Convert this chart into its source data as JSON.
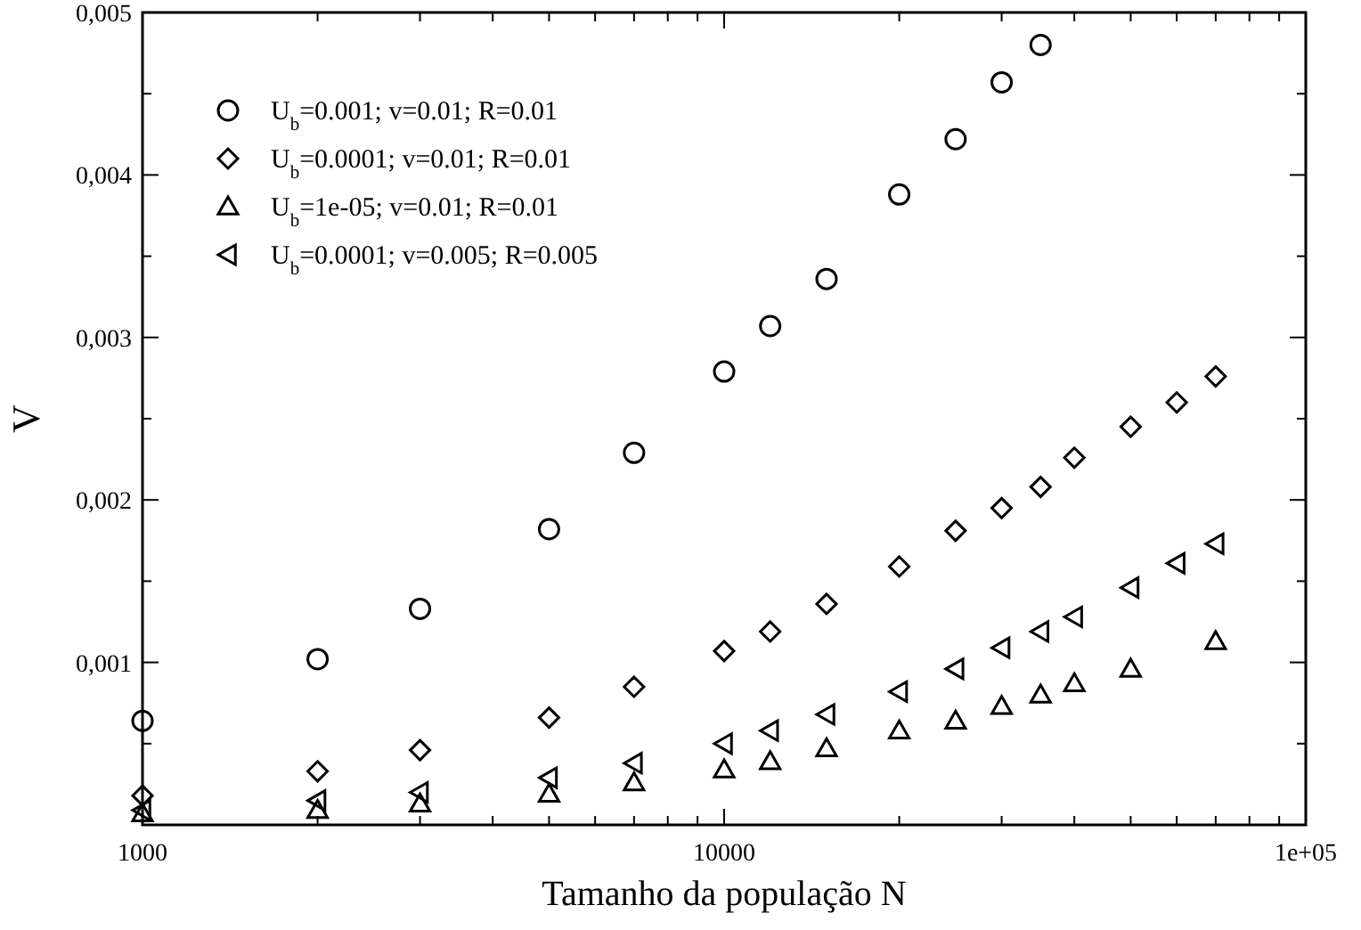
{
  "chart_data": {
    "type": "scatter",
    "xlabel": "Tamanho da população N",
    "ylabel": "V",
    "log": "x",
    "grid": false,
    "legend": "top left",
    "xlim": [
      1000,
      100000
    ],
    "ylim": [
      0,
      0.005
    ],
    "xticks": [
      {
        "value": 1000,
        "label": "1000"
      },
      {
        "value": 2000,
        "label": null
      },
      {
        "value": 3000,
        "label": null
      },
      {
        "value": 4000,
        "label": null
      },
      {
        "value": 5000,
        "label": null
      },
      {
        "value": 6000,
        "label": null
      },
      {
        "value": 7000,
        "label": null
      },
      {
        "value": 8000,
        "label": null
      },
      {
        "value": 9000,
        "label": null
      },
      {
        "value": 10000,
        "label": "10000"
      },
      {
        "value": 20000,
        "label": null
      },
      {
        "value": 30000,
        "label": null
      },
      {
        "value": 40000,
        "label": null
      },
      {
        "value": 50000,
        "label": null
      },
      {
        "value": 60000,
        "label": null
      },
      {
        "value": 70000,
        "label": null
      },
      {
        "value": 80000,
        "label": null
      },
      {
        "value": 90000,
        "label": null
      },
      {
        "value": 100000,
        "label": "1e+05"
      }
    ],
    "yticks": [
      {
        "value": 0.0005,
        "label": null
      },
      {
        "value": 0.001,
        "label": "0,001"
      },
      {
        "value": 0.0015,
        "label": null
      },
      {
        "value": 0.002,
        "label": "0,002"
      },
      {
        "value": 0.0025,
        "label": null
      },
      {
        "value": 0.003,
        "label": "0,003"
      },
      {
        "value": 0.0035,
        "label": null
      },
      {
        "value": 0.004,
        "label": "0,004"
      },
      {
        "value": 0.0045,
        "label": null
      },
      {
        "value": 0.005,
        "label": "0,005"
      }
    ],
    "series": [
      {
        "name": "U$_{b}$=0.001; v=0.01; R=0.01",
        "color": "#000000",
        "marker": "circle",
        "x": [
          1000,
          2000,
          3000,
          5000,
          7000,
          10000,
          12000,
          15000,
          20000,
          25000,
          30000,
          35000
        ],
        "values": [
          0.00064,
          0.00102,
          0.00133,
          0.00182,
          0.00229,
          0.00279,
          0.00307,
          0.00336,
          0.00388,
          0.00422,
          0.00457,
          0.0048
        ]
      },
      {
        "name": "U$_{b}$=0.0001; v=0.01; R=0.01",
        "color": "#000000",
        "marker": "diamond",
        "x": [
          1000,
          2000,
          3000,
          5000,
          7000,
          10000,
          12000,
          15000,
          20000,
          25000,
          30000,
          35000,
          40000,
          50000,
          60000,
          70000
        ],
        "values": [
          0.00018,
          0.00033,
          0.00046,
          0.00066,
          0.00085,
          0.00107,
          0.00119,
          0.00136,
          0.00159,
          0.00181,
          0.00195,
          0.00208,
          0.00226,
          0.00245,
          0.0026,
          0.00276
        ]
      },
      {
        "name": "U$_{b}$=1e-05; v=0.01; R=0.01",
        "color": "#000000",
        "marker": "triangle",
        "x": [
          1000,
          2000,
          3000,
          5000,
          7000,
          10000,
          12000,
          15000,
          20000,
          25000,
          30000,
          35000,
          40000,
          50000,
          70000
        ],
        "values": [
          7e-05,
          9e-05,
          0.00013,
          0.00019,
          0.00026,
          0.00034,
          0.00039,
          0.00047,
          0.00058,
          0.00064,
          0.00073,
          0.0008,
          0.00087,
          0.00096,
          0.00113
        ]
      },
      {
        "name": "U$_{b}$=0.0001; v=0.005; R=0.005",
        "color": "#000000",
        "marker": "triangle-left",
        "x": [
          1000,
          2000,
          3000,
          5000,
          7000,
          10000,
          12000,
          15000,
          20000,
          25000,
          30000,
          35000,
          40000,
          50000,
          60000,
          70000
        ],
        "values": [
          9e-05,
          0.00015,
          0.0002,
          0.00029,
          0.00038,
          0.0005,
          0.00058,
          0.00068,
          0.00082,
          0.00096,
          0.00109,
          0.00119,
          0.00128,
          0.00146,
          0.00161,
          0.00173
        ]
      }
    ]
  }
}
